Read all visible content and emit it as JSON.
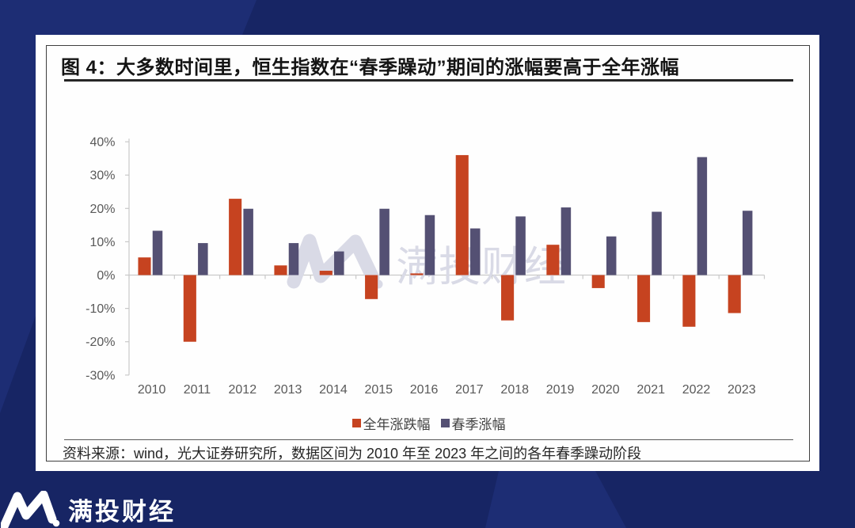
{
  "figure": {
    "title": "图 4：大多数时间里，恒生指数在“春季躁动”期间的涨幅要高于全年涨幅",
    "source_note": "资料来源：wind，光大证券研究所，数据区间为 2010 年至 2023 年之间的各年春季躁动阶段"
  },
  "brand": {
    "name": "满投财经"
  },
  "watermark": {
    "text": "满投财经"
  },
  "colors": {
    "background_navy": "#172564",
    "background_light_navy": "#1d2d74",
    "annual_series_red": "#c64320",
    "spring_series_blue": "#545073",
    "watermark_gray": "#d9dae6",
    "axis_gray": "#c9c9c9",
    "label_gray": "#595959"
  },
  "chart_data": {
    "type": "bar",
    "title": "大多数时间里，恒生指数在“春季躁动”期间的涨幅要高于全年涨幅",
    "categories": [
      "2010",
      "2011",
      "2012",
      "2013",
      "2014",
      "2015",
      "2016",
      "2017",
      "2018",
      "2019",
      "2020",
      "2021",
      "2022",
      "2023"
    ],
    "series": [
      {
        "name": "全年涨跌幅",
        "color": "#c64320",
        "values": [
          5.3,
          -20.0,
          22.9,
          2.9,
          1.3,
          -7.2,
          0.5,
          36.0,
          -13.6,
          9.1,
          -3.9,
          -14.1,
          -15.5,
          -11.4
        ]
      },
      {
        "name": "春季涨幅",
        "color": "#545073",
        "values": [
          13.3,
          9.6,
          19.9,
          9.6,
          7.1,
          19.9,
          18.0,
          14.0,
          17.6,
          20.3,
          11.6,
          19.0,
          35.4,
          19.3
        ]
      }
    ],
    "xlabel": "",
    "ylabel": "",
    "ylim": [
      -30,
      40
    ],
    "ytick_step": 10,
    "ytick_suffix": "%",
    "grid": false,
    "legend_position": "bottom"
  }
}
